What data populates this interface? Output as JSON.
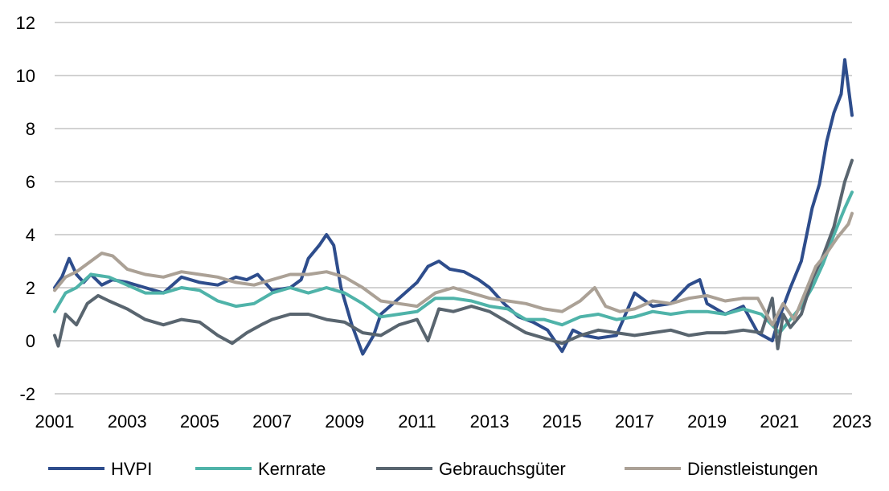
{
  "chart_data": {
    "type": "line",
    "title": "",
    "xlabel": "",
    "ylabel": "",
    "xlim": [
      2001,
      2023
    ],
    "ylim": [
      -2,
      12
    ],
    "yticks": [
      "-2",
      "0",
      "2",
      "4",
      "6",
      "8",
      "10",
      "12"
    ],
    "xticks": [
      "2001",
      "2003",
      "2005",
      "2007",
      "2009",
      "2011",
      "2013",
      "2015",
      "2017",
      "2019",
      "2021",
      "2023"
    ],
    "grid": true,
    "legend_position": "bottom",
    "series": [
      {
        "name": "HVPI",
        "color": "#2e4d8c",
        "x": [
          2001.0,
          2001.2,
          2001.4,
          2001.6,
          2001.8,
          2002.0,
          2002.3,
          2002.6,
          2003.0,
          2003.5,
          2004.0,
          2004.5,
          2005.0,
          2005.5,
          2006.0,
          2006.3,
          2006.6,
          2007.0,
          2007.5,
          2007.8,
          2008.0,
          2008.3,
          2008.5,
          2008.7,
          2008.9,
          2009.2,
          2009.5,
          2009.8,
          2010.0,
          2010.5,
          2011.0,
          2011.3,
          2011.6,
          2011.9,
          2012.3,
          2012.7,
          2013.0,
          2013.4,
          2013.8,
          2014.2,
          2014.6,
          2015.0,
          2015.3,
          2015.6,
          2016.0,
          2016.5,
          2017.0,
          2017.5,
          2018.0,
          2018.5,
          2018.8,
          2019.0,
          2019.5,
          2020.0,
          2020.4,
          2020.8,
          2021.0,
          2021.3,
          2021.6,
          2021.9,
          2022.1,
          2022.3,
          2022.5,
          2022.7,
          2022.8,
          2023.0
        ],
        "y": [
          2.0,
          2.4,
          3.1,
          2.5,
          2.2,
          2.5,
          2.1,
          2.3,
          2.2,
          2.0,
          1.8,
          2.4,
          2.2,
          2.1,
          2.4,
          2.3,
          2.5,
          1.9,
          2.0,
          2.3,
          3.1,
          3.6,
          4.0,
          3.6,
          2.0,
          0.6,
          -0.5,
          0.2,
          1.0,
          1.6,
          2.2,
          2.8,
          3.0,
          2.7,
          2.6,
          2.3,
          2.0,
          1.4,
          0.9,
          0.7,
          0.4,
          -0.4,
          0.4,
          0.2,
          0.1,
          0.2,
          1.8,
          1.3,
          1.4,
          2.1,
          2.3,
          1.4,
          1.0,
          1.3,
          0.3,
          0.0,
          0.9,
          2.0,
          3.0,
          5.0,
          5.9,
          7.5,
          8.6,
          9.3,
          10.6,
          8.5
        ]
      },
      {
        "name": "Kernrate",
        "color": "#4fb3a9",
        "x": [
          2001.0,
          2001.3,
          2001.6,
          2002.0,
          2002.5,
          2003.0,
          2003.5,
          2004.0,
          2004.5,
          2005.0,
          2005.5,
          2006.0,
          2006.5,
          2007.0,
          2007.5,
          2008.0,
          2008.5,
          2009.0,
          2009.5,
          2010.0,
          2010.5,
          2011.0,
          2011.5,
          2012.0,
          2012.5,
          2013.0,
          2013.5,
          2014.0,
          2014.5,
          2015.0,
          2015.5,
          2016.0,
          2016.5,
          2017.0,
          2017.5,
          2018.0,
          2018.5,
          2019.0,
          2019.5,
          2020.0,
          2020.5,
          2021.0,
          2021.3,
          2021.6,
          2021.9,
          2022.2,
          2022.5,
          2022.8,
          2023.0
        ],
        "y": [
          1.1,
          1.8,
          2.0,
          2.5,
          2.4,
          2.1,
          1.8,
          1.8,
          2.0,
          1.9,
          1.5,
          1.3,
          1.4,
          1.8,
          2.0,
          1.8,
          2.0,
          1.8,
          1.4,
          0.9,
          1.0,
          1.1,
          1.6,
          1.6,
          1.5,
          1.3,
          1.2,
          0.8,
          0.8,
          0.6,
          0.9,
          1.0,
          0.8,
          0.9,
          1.1,
          1.0,
          1.1,
          1.1,
          1.0,
          1.2,
          1.0,
          0.3,
          0.8,
          1.3,
          2.0,
          2.9,
          4.0,
          5.0,
          5.6
        ]
      },
      {
        "name": "Gebrauchsgüter",
        "color": "#59656f",
        "x": [
          2001.0,
          2001.1,
          2001.3,
          2001.6,
          2001.9,
          2002.2,
          2002.5,
          2003.0,
          2003.5,
          2004.0,
          2004.5,
          2005.0,
          2005.5,
          2005.9,
          2006.3,
          2006.7,
          2007.0,
          2007.5,
          2008.0,
          2008.5,
          2009.0,
          2009.5,
          2010.0,
          2010.5,
          2011.0,
          2011.3,
          2011.6,
          2012.0,
          2012.5,
          2013.0,
          2013.5,
          2014.0,
          2014.5,
          2015.0,
          2015.5,
          2016.0,
          2016.5,
          2017.0,
          2017.5,
          2018.0,
          2018.5,
          2019.0,
          2019.5,
          2020.0,
          2020.5,
          2020.8,
          2020.95,
          2021.1,
          2021.3,
          2021.6,
          2021.9,
          2022.2,
          2022.5,
          2022.8,
          2023.0
        ],
        "y": [
          0.2,
          -0.2,
          1.0,
          0.6,
          1.4,
          1.7,
          1.5,
          1.2,
          0.8,
          0.6,
          0.8,
          0.7,
          0.2,
          -0.1,
          0.3,
          0.6,
          0.8,
          1.0,
          1.0,
          0.8,
          0.7,
          0.3,
          0.2,
          0.6,
          0.8,
          0.0,
          1.2,
          1.1,
          1.3,
          1.1,
          0.7,
          0.3,
          0.1,
          -0.1,
          0.2,
          0.4,
          0.3,
          0.2,
          0.3,
          0.4,
          0.2,
          0.3,
          0.3,
          0.4,
          0.3,
          1.6,
          -0.3,
          1.0,
          0.5,
          1.0,
          2.3,
          3.2,
          4.3,
          6.0,
          6.8
        ]
      },
      {
        "name": "Dienstleistungen",
        "color": "#aba196",
        "x": [
          2001.0,
          2001.3,
          2001.6,
          2002.0,
          2002.3,
          2002.6,
          2003.0,
          2003.5,
          2004.0,
          2004.5,
          2005.0,
          2005.5,
          2006.0,
          2006.5,
          2007.0,
          2007.5,
          2008.0,
          2008.5,
          2009.0,
          2009.5,
          2010.0,
          2010.5,
          2011.0,
          2011.5,
          2012.0,
          2012.5,
          2013.0,
          2013.5,
          2014.0,
          2014.5,
          2015.0,
          2015.5,
          2015.9,
          2016.2,
          2016.6,
          2017.0,
          2017.5,
          2018.0,
          2018.5,
          2019.0,
          2019.5,
          2020.0,
          2020.4,
          2020.8,
          2021.1,
          2021.4,
          2021.7,
          2022.0,
          2022.3,
          2022.6,
          2022.9,
          2023.0
        ],
        "y": [
          1.9,
          2.4,
          2.6,
          3.0,
          3.3,
          3.2,
          2.7,
          2.5,
          2.4,
          2.6,
          2.5,
          2.4,
          2.2,
          2.1,
          2.3,
          2.5,
          2.5,
          2.6,
          2.4,
          2.0,
          1.5,
          1.4,
          1.3,
          1.8,
          2.0,
          1.8,
          1.6,
          1.5,
          1.4,
          1.2,
          1.1,
          1.5,
          2.0,
          1.3,
          1.1,
          1.2,
          1.5,
          1.4,
          1.6,
          1.7,
          1.5,
          1.6,
          1.6,
          0.6,
          1.4,
          0.8,
          1.8,
          2.8,
          3.3,
          3.9,
          4.4,
          4.8
        ]
      }
    ]
  }
}
